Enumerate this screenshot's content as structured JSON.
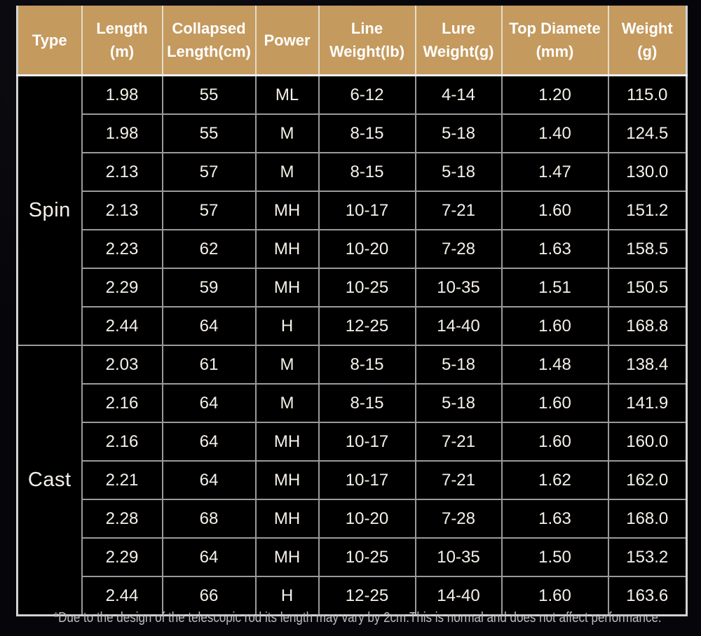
{
  "page": {
    "background": "#06060a",
    "accent_color": "#c49a5e",
    "grid_color": "#9a9a9a",
    "text_color": "#f5f0e8"
  },
  "table": {
    "header": {
      "bg": "#c49a5e",
      "text_color": "#ffffff",
      "columns": [
        {
          "id": "type",
          "label": "Type"
        },
        {
          "id": "length_m",
          "label": "Length\n(m)"
        },
        {
          "id": "collapsed_length_cm",
          "label": "Collapsed\nLength(cm)"
        },
        {
          "id": "power",
          "label": "Power"
        },
        {
          "id": "line_weight_lb",
          "label": "Line\nWeight(lb)"
        },
        {
          "id": "lure_weight_g",
          "label": "Lure\nWeight(g)"
        },
        {
          "id": "top_diameter_mm",
          "label": "Top Diamete\n(mm)"
        },
        {
          "id": "weight_g",
          "label": "Weight\n(g)"
        }
      ]
    },
    "sections": [
      {
        "type": "Spin",
        "rows": [
          [
            "1.98",
            "55",
            "ML",
            "6-12",
            "4-14",
            "1.20",
            "115.0"
          ],
          [
            "1.98",
            "55",
            "M",
            "8-15",
            "5-18",
            "1.40",
            "124.5"
          ],
          [
            "2.13",
            "57",
            "M",
            "8-15",
            "5-18",
            "1.47",
            "130.0"
          ],
          [
            "2.13",
            "57",
            "MH",
            "10-17",
            "7-21",
            "1.60",
            "151.2"
          ],
          [
            "2.23",
            "62",
            "MH",
            "10-20",
            "7-28",
            "1.63",
            "158.5"
          ],
          [
            "2.29",
            "59",
            "MH",
            "10-25",
            "10-35",
            "1.51",
            "150.5"
          ],
          [
            "2.44",
            "64",
            "H",
            "12-25",
            "14-40",
            "1.60",
            "168.8"
          ]
        ]
      },
      {
        "type": "Cast",
        "rows": [
          [
            "2.03",
            "61",
            "M",
            "8-15",
            "5-18",
            "1.48",
            "138.4"
          ],
          [
            "2.16",
            "64",
            "M",
            "8-15",
            "5-18",
            "1.60",
            "141.9"
          ],
          [
            "2.16",
            "64",
            "MH",
            "10-17",
            "7-21",
            "1.60",
            "160.0"
          ],
          [
            "2.21",
            "64",
            "MH",
            "10-17",
            "7-21",
            "1.62",
            "162.0"
          ],
          [
            "2.28",
            "68",
            "MH",
            "10-20",
            "7-28",
            "1.63",
            "168.0"
          ],
          [
            "2.29",
            "64",
            "MH",
            "10-25",
            "10-35",
            "1.50",
            "153.2"
          ],
          [
            "2.44",
            "66",
            "H",
            "12-25",
            "14-40",
            "1.60",
            "163.6"
          ]
        ]
      }
    ]
  },
  "footnote": {
    "text": "*Due to the design of the telescopic rod its length may vary by 2cm.This is normal and does not affect performance."
  }
}
